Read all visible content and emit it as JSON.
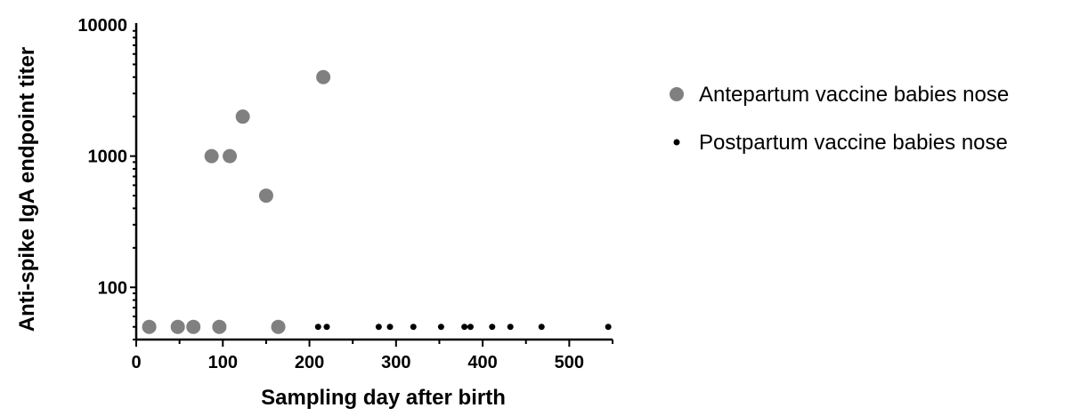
{
  "chart_data": {
    "type": "scatter",
    "xlabel": "Sampling day after birth",
    "ylabel": "Anti-spike IgA endpoint titer",
    "xlim": [
      0,
      550
    ],
    "ylim": [
      40,
      10000
    ],
    "yscale": "log",
    "x_ticks": [
      0,
      100,
      200,
      300,
      400,
      500
    ],
    "y_ticks": [
      100,
      1000,
      10000
    ],
    "grid": false,
    "legend_position": "right",
    "series": [
      {
        "name": "Antepartum vaccine babies nose",
        "color": "#808080",
        "marker": "large-circle",
        "points": [
          {
            "x": 15,
            "y": 50
          },
          {
            "x": 48,
            "y": 50
          },
          {
            "x": 66,
            "y": 50
          },
          {
            "x": 87,
            "y": 1000
          },
          {
            "x": 96,
            "y": 50
          },
          {
            "x": 108,
            "y": 1000
          },
          {
            "x": 123,
            "y": 2000
          },
          {
            "x": 150,
            "y": 500
          },
          {
            "x": 164,
            "y": 50
          },
          {
            "x": 216,
            "y": 4000
          }
        ]
      },
      {
        "name": "Postpartum vaccine babies nose",
        "color": "#000000",
        "marker": "small-dot",
        "points": [
          {
            "x": 210,
            "y": 50
          },
          {
            "x": 220,
            "y": 50
          },
          {
            "x": 280,
            "y": 50
          },
          {
            "x": 293,
            "y": 50
          },
          {
            "x": 320,
            "y": 50
          },
          {
            "x": 352,
            "y": 50
          },
          {
            "x": 379,
            "y": 50
          },
          {
            "x": 386,
            "y": 50
          },
          {
            "x": 411,
            "y": 50
          },
          {
            "x": 432,
            "y": 50
          },
          {
            "x": 468,
            "y": 50
          },
          {
            "x": 545,
            "y": 50
          }
        ]
      }
    ]
  }
}
